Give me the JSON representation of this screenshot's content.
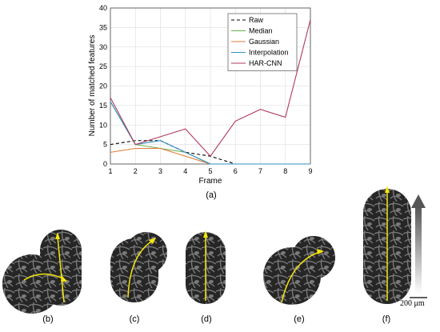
{
  "chart_data": {
    "type": "line",
    "xlabel": "Frame",
    "ylabel": "Number of matched features",
    "xlim": [
      1,
      9
    ],
    "ylim": [
      0,
      40
    ],
    "xticks": [
      1,
      2,
      3,
      4,
      5,
      6,
      7,
      8,
      9
    ],
    "yticks": [
      0,
      5,
      10,
      15,
      20,
      25,
      30,
      35,
      40
    ],
    "grid": true,
    "legend_position": "top-right",
    "series": [
      {
        "name": "Raw",
        "color": "#000000",
        "dash": true,
        "x": [
          1,
          2,
          3,
          4,
          5,
          6,
          7,
          8,
          9
        ],
        "values": [
          5,
          6,
          6,
          3,
          2,
          0,
          0,
          0,
          0
        ]
      },
      {
        "name": "Median",
        "color": "#6ab04c",
        "dash": false,
        "x": [
          1,
          2,
          3,
          4,
          5,
          6,
          7,
          8,
          9
        ],
        "values": [
          16,
          5,
          4,
          3,
          0,
          0,
          0,
          0,
          0
        ]
      },
      {
        "name": "Gaussian",
        "color": "#e07b39",
        "dash": false,
        "x": [
          1,
          2,
          3,
          4,
          5,
          6,
          7,
          8,
          9
        ],
        "values": [
          3,
          4,
          4,
          2,
          0,
          0,
          0,
          0,
          0
        ]
      },
      {
        "name": "Interpolation",
        "color": "#2f8fc4",
        "dash": false,
        "x": [
          1,
          2,
          3,
          4,
          5,
          6,
          7,
          8,
          9
        ],
        "values": [
          16,
          5,
          6,
          3,
          0,
          0,
          0,
          0,
          0
        ]
      },
      {
        "name": "HAR-CNN",
        "color": "#b03a5b",
        "dash": false,
        "x": [
          1,
          2,
          3,
          4,
          5,
          6,
          7,
          8,
          9
        ],
        "values": [
          17,
          5,
          7,
          9,
          2,
          11,
          14,
          12,
          37
        ]
      }
    ]
  },
  "captions": {
    "a": "(a)",
    "b": "(b)",
    "c": "(c)",
    "d": "(d)",
    "e": "(e)",
    "f": "(f)"
  },
  "scale_bar": {
    "label": "200 μm"
  },
  "colors": {
    "arrow": "#f5e60a",
    "tissue": "#2a2a2a"
  }
}
